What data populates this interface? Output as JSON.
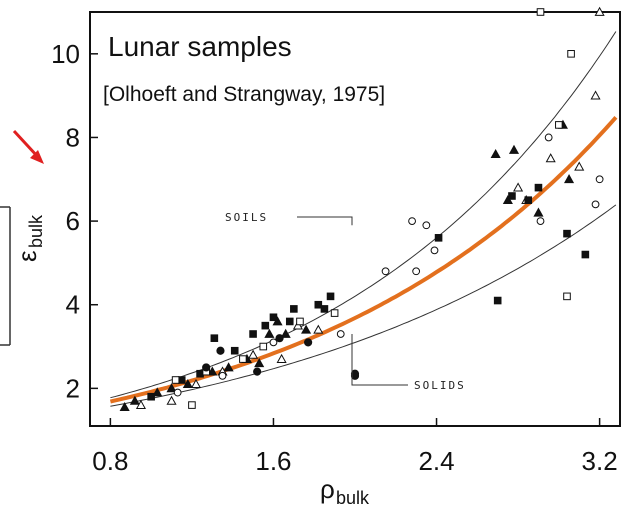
{
  "chart_data": {
    "type": "scatter",
    "title": "Lunar samples",
    "subtitle": "[Olhoeft and Strangway, 1975]",
    "xlabel": "ρ",
    "xlabel_sub": "bulk",
    "ylabel": "ε",
    "ylabel_sub": "bulk",
    "xlim": [
      0.7,
      3.3
    ],
    "ylim": [
      1.1,
      11.0
    ],
    "x_ticks": [
      "0.8",
      "1.6",
      "2.4",
      "3.2"
    ],
    "y_ticks": [
      "2",
      "4",
      "6",
      "8",
      "10"
    ],
    "annotations": [
      {
        "label": "SOILS",
        "anchor_x": 2.0,
        "anchor_y": 5.9
      },
      {
        "label": "SOLIDS",
        "anchor_x": 2.03,
        "anchor_y": 3.3
      }
    ],
    "series": [
      {
        "marker": "filled-triangle",
        "points": [
          [
            0.87,
            1.55
          ],
          [
            0.92,
            1.7
          ],
          [
            1.03,
            1.9
          ],
          [
            1.1,
            2.0
          ],
          [
            1.18,
            2.1
          ],
          [
            1.3,
            2.4
          ],
          [
            1.38,
            2.5
          ],
          [
            1.47,
            2.7
          ],
          [
            1.53,
            2.6
          ],
          [
            1.58,
            3.3
          ],
          [
            1.62,
            3.6
          ],
          [
            1.66,
            3.3
          ],
          [
            1.76,
            3.4
          ],
          [
            2.69,
            7.6
          ],
          [
            2.75,
            6.5
          ],
          [
            2.78,
            7.7
          ],
          [
            2.9,
            6.2
          ],
          [
            3.02,
            8.3
          ],
          [
            3.05,
            7.0
          ]
        ]
      },
      {
        "marker": "open-triangle",
        "points": [
          [
            0.95,
            1.6
          ],
          [
            1.1,
            1.7
          ],
          [
            1.22,
            2.1
          ],
          [
            1.35,
            2.4
          ],
          [
            1.5,
            2.8
          ],
          [
            1.64,
            2.7
          ],
          [
            1.72,
            3.5
          ],
          [
            1.82,
            3.4
          ],
          [
            2.8,
            6.8
          ],
          [
            2.84,
            6.5
          ],
          [
            2.96,
            7.5
          ],
          [
            3.1,
            7.3
          ],
          [
            3.18,
            9.0
          ],
          [
            3.2,
            11.0
          ]
        ]
      },
      {
        "marker": "filled-square",
        "points": [
          [
            1.0,
            1.8
          ],
          [
            1.15,
            2.2
          ],
          [
            1.24,
            2.35
          ],
          [
            1.31,
            3.2
          ],
          [
            1.41,
            2.9
          ],
          [
            1.5,
            3.3
          ],
          [
            1.56,
            3.5
          ],
          [
            1.6,
            3.7
          ],
          [
            1.68,
            3.6
          ],
          [
            1.7,
            3.9
          ],
          [
            1.82,
            4.0
          ],
          [
            1.85,
            3.9
          ],
          [
            1.88,
            4.2
          ],
          [
            2.41,
            5.6
          ],
          [
            2.7,
            4.1
          ],
          [
            2.77,
            6.6
          ],
          [
            2.85,
            6.5
          ],
          [
            2.9,
            6.8
          ],
          [
            3.04,
            5.7
          ],
          [
            3.13,
            5.2
          ]
        ]
      },
      {
        "marker": "open-square",
        "points": [
          [
            1.12,
            2.2
          ],
          [
            1.2,
            1.6
          ],
          [
            1.27,
            2.4
          ],
          [
            1.45,
            2.7
          ],
          [
            1.55,
            3.0
          ],
          [
            1.73,
            3.6
          ],
          [
            1.9,
            3.8
          ],
          [
            2.91,
            11.0
          ],
          [
            3.0,
            8.3
          ],
          [
            3.06,
            10.0
          ],
          [
            3.04,
            4.2
          ]
        ]
      },
      {
        "marker": "filled-circle",
        "points": [
          [
            1.27,
            2.5
          ],
          [
            1.34,
            2.9
          ],
          [
            1.52,
            2.4
          ],
          [
            1.63,
            3.2
          ],
          [
            1.77,
            3.1
          ],
          [
            2.0,
            2.3
          ]
        ]
      },
      {
        "marker": "open-circle",
        "points": [
          [
            1.13,
            1.9
          ],
          [
            1.35,
            2.3
          ],
          [
            1.6,
            3.1
          ],
          [
            1.93,
            3.3
          ],
          [
            2.15,
            4.8
          ],
          [
            2.28,
            6.0
          ],
          [
            2.35,
            5.9
          ],
          [
            2.39,
            5.3
          ],
          [
            2.3,
            4.8
          ],
          [
            2.91,
            6.0
          ],
          [
            2.95,
            8.0
          ],
          [
            3.18,
            6.4
          ],
          [
            3.2,
            7.0
          ]
        ]
      },
      {
        "marker": "filled-circle-dark",
        "points": [
          [
            2.0,
            2.35
          ]
        ]
      }
    ],
    "curves": [
      {
        "kind": "upper-thin",
        "a": 1.0,
        "b": 1.0,
        "base": 2.05
      },
      {
        "kind": "fit-orange",
        "a": 1.0,
        "b": 1.0,
        "base": 1.919
      },
      {
        "kind": "lower-thin",
        "a": 1.0,
        "b": 1.0,
        "base": 1.76
      }
    ],
    "accent_colors": {
      "fit": "#e3701e",
      "arrow": "#e02020"
    }
  }
}
